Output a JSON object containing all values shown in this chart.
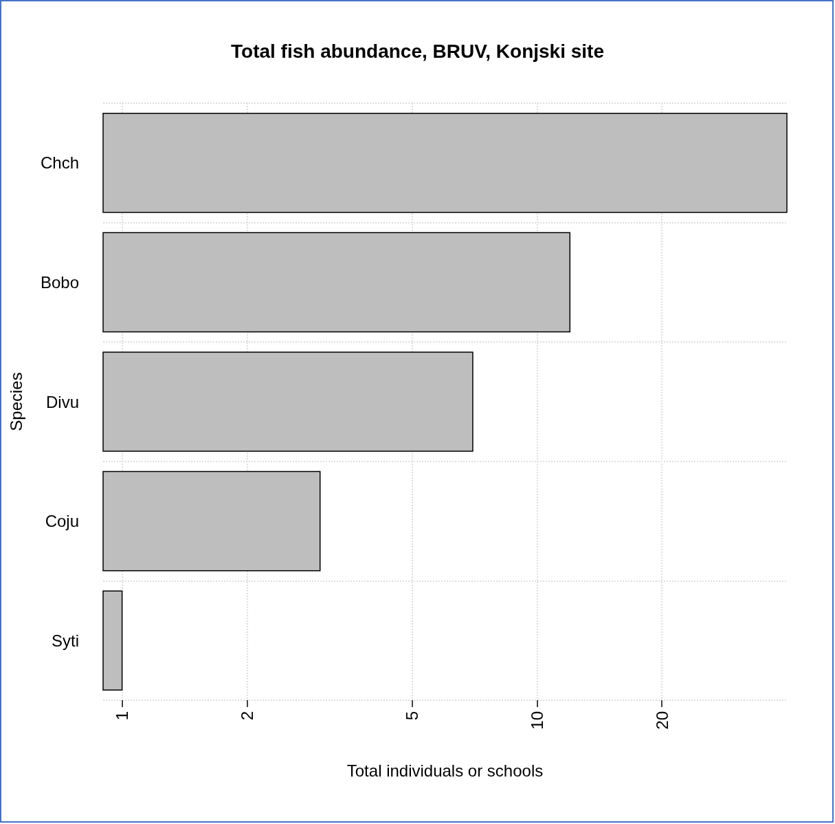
{
  "chart_data": {
    "type": "bar",
    "orientation": "horizontal",
    "title": "Total fish abundance, BRUV, Konjski site",
    "xlabel": "Total individuals or schools",
    "ylabel": "Species",
    "categories": [
      "Chch",
      "Bobo",
      "Divu",
      "Coju",
      "Syti"
    ],
    "values": [
      40,
      12,
      7,
      3,
      1
    ],
    "color": "#bebebe",
    "log": "x",
    "xlim": [
      0.9,
      40
    ],
    "xticks": [
      1,
      2,
      5,
      10,
      20
    ],
    "grid": true
  }
}
